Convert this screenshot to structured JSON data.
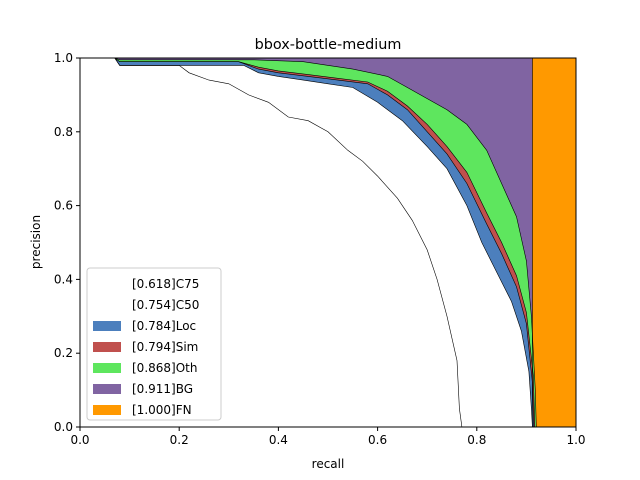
{
  "chart_data": {
    "type": "area",
    "title": "bbox-bottle-medium",
    "xlabel": "recall",
    "ylabel": "precision",
    "xlim": [
      0,
      1
    ],
    "ylim": [
      0,
      1
    ],
    "xticks": [
      "0.0",
      "0.2",
      "0.4",
      "0.6",
      "0.8",
      "1.0"
    ],
    "yticks": [
      "0.0",
      "0.2",
      "0.4",
      "0.6",
      "0.8",
      "1.0"
    ],
    "grid": false,
    "legend_position": "lower-left",
    "series": [
      {
        "name": "[0.618]C75",
        "color": "#ffffff",
        "points": [
          [
            0,
            1.0
          ],
          [
            0.07,
            1.0
          ],
          [
            0.08,
            0.98
          ],
          [
            0.2,
            0.98
          ],
          [
            0.22,
            0.96
          ],
          [
            0.26,
            0.94
          ],
          [
            0.3,
            0.93
          ],
          [
            0.34,
            0.9
          ],
          [
            0.38,
            0.88
          ],
          [
            0.42,
            0.84
          ],
          [
            0.46,
            0.83
          ],
          [
            0.5,
            0.8
          ],
          [
            0.54,
            0.75
          ],
          [
            0.57,
            0.72
          ],
          [
            0.6,
            0.68
          ],
          [
            0.64,
            0.62
          ],
          [
            0.67,
            0.56
          ],
          [
            0.7,
            0.48
          ],
          [
            0.72,
            0.4
          ],
          [
            0.74,
            0.3
          ],
          [
            0.76,
            0.18
          ],
          [
            0.765,
            0.05
          ],
          [
            0.77,
            0.0
          ]
        ]
      },
      {
        "name": "[0.754]C50",
        "color": "#ffffff",
        "points": [
          [
            0,
            1.0
          ],
          [
            0.07,
            1.0
          ],
          [
            0.08,
            0.98
          ],
          [
            0.33,
            0.98
          ],
          [
            0.36,
            0.96
          ],
          [
            0.4,
            0.95
          ],
          [
            0.45,
            0.94
          ],
          [
            0.5,
            0.93
          ],
          [
            0.55,
            0.92
          ],
          [
            0.6,
            0.88
          ],
          [
            0.65,
            0.83
          ],
          [
            0.7,
            0.76
          ],
          [
            0.74,
            0.7
          ],
          [
            0.78,
            0.6
          ],
          [
            0.81,
            0.5
          ],
          [
            0.84,
            0.42
          ],
          [
            0.87,
            0.34
          ],
          [
            0.89,
            0.26
          ],
          [
            0.905,
            0.15
          ],
          [
            0.91,
            0.05
          ],
          [
            0.912,
            0.0
          ]
        ]
      },
      {
        "name": "[0.784]Loc",
        "color": "#4c7fbd",
        "points": [
          [
            0,
            1.0
          ],
          [
            0.07,
            1.0
          ],
          [
            0.08,
            0.99
          ],
          [
            0.32,
            0.99
          ],
          [
            0.36,
            0.97
          ],
          [
            0.4,
            0.96
          ],
          [
            0.46,
            0.95
          ],
          [
            0.52,
            0.94
          ],
          [
            0.58,
            0.93
          ],
          [
            0.62,
            0.9
          ],
          [
            0.66,
            0.86
          ],
          [
            0.7,
            0.8
          ],
          [
            0.74,
            0.74
          ],
          [
            0.78,
            0.66
          ],
          [
            0.82,
            0.55
          ],
          [
            0.85,
            0.47
          ],
          [
            0.88,
            0.38
          ],
          [
            0.9,
            0.28
          ],
          [
            0.912,
            0.12
          ],
          [
            0.915,
            0.0
          ]
        ]
      },
      {
        "name": "[0.794]Sim",
        "color": "#c0504d",
        "points": [
          [
            0,
            1.0
          ],
          [
            0.07,
            1.0
          ],
          [
            0.08,
            0.99
          ],
          [
            0.32,
            0.99
          ],
          [
            0.36,
            0.975
          ],
          [
            0.4,
            0.965
          ],
          [
            0.46,
            0.955
          ],
          [
            0.52,
            0.945
          ],
          [
            0.58,
            0.935
          ],
          [
            0.62,
            0.91
          ],
          [
            0.66,
            0.87
          ],
          [
            0.7,
            0.82
          ],
          [
            0.74,
            0.76
          ],
          [
            0.78,
            0.69
          ],
          [
            0.82,
            0.58
          ],
          [
            0.85,
            0.5
          ],
          [
            0.88,
            0.41
          ],
          [
            0.9,
            0.31
          ],
          [
            0.914,
            0.14
          ],
          [
            0.917,
            0.0
          ]
        ]
      },
      {
        "name": "[0.868]Oth",
        "color": "#5ee65e",
        "points": [
          [
            0,
            1.0
          ],
          [
            0.07,
            1.0
          ],
          [
            0.08,
            0.995
          ],
          [
            0.35,
            0.995
          ],
          [
            0.45,
            0.99
          ],
          [
            0.55,
            0.97
          ],
          [
            0.62,
            0.95
          ],
          [
            0.66,
            0.92
          ],
          [
            0.7,
            0.89
          ],
          [
            0.74,
            0.86
          ],
          [
            0.78,
            0.82
          ],
          [
            0.82,
            0.75
          ],
          [
            0.85,
            0.66
          ],
          [
            0.88,
            0.57
          ],
          [
            0.9,
            0.45
          ],
          [
            0.91,
            0.3
          ],
          [
            0.918,
            0.1
          ],
          [
            0.92,
            0.0
          ]
        ]
      },
      {
        "name": "[0.911]BG",
        "color": "#8064a2",
        "points": [
          [
            0,
            1.0
          ],
          [
            0.912,
            1.0
          ],
          [
            0.912,
            0.0
          ]
        ]
      },
      {
        "name": "[1.000]FN",
        "color": "#ff9900",
        "points": [
          [
            0,
            1.0
          ],
          [
            1.0,
            1.0
          ],
          [
            1.0,
            0.0
          ]
        ]
      }
    ]
  }
}
